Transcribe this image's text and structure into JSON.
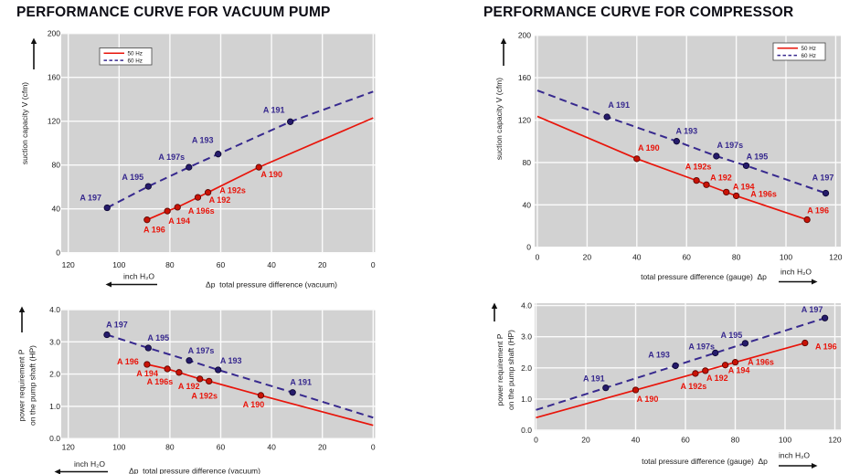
{
  "figure_titles": {
    "left": "PERFORMANCE CURVE FOR VACUUM PUMP",
    "right": "PERFORMANCE CURVE FOR COMPRESSOR"
  },
  "colors": {
    "plot_background": "#d2d2d2",
    "grid": "#fbfbfb",
    "axis_text": "#1a1a1a",
    "arrow": "#111111",
    "series_50hz": "#e8140a",
    "series_60hz": "#37298e"
  },
  "chart_data": [
    {
      "id": "vacuum-pump-suction-capacity",
      "type": "line",
      "group_title": "PERFORMANCE CURVE FOR VACUUM PUMP",
      "xlabel": "Δp  total pressure difference (vacuum)",
      "x_unit": "inch H₂O",
      "x_arrow_direction": "left",
      "x_reversed": true,
      "ylabel_lines": [
        "suction capacity V (cfm)"
      ],
      "xlim": [
        0,
        120
      ],
      "ylim": [
        0,
        200
      ],
      "xticks": [
        "0",
        "20",
        "40",
        "60",
        "80",
        "100",
        "120"
      ],
      "yticks": [
        "0",
        "40",
        "80",
        "120",
        "160",
        "200"
      ],
      "grid": true,
      "legend": {
        "position": "top-left"
      },
      "series": [
        {
          "name": "50 Hz",
          "style": "solid",
          "color": "#e8140a",
          "marker_fill": "#c91205",
          "marker_stroke": "#5e0500",
          "path": [
            [
              89,
              30
            ],
            [
              81,
              38
            ],
            [
              77,
              41.5
            ],
            [
              69,
              50.5
            ],
            [
              65,
              55
            ],
            [
              45,
              78
            ],
            [
              0,
              123
            ]
          ],
          "labeled_points": [
            {
              "label": "A 196",
              "x": 89,
              "y": 30,
              "dx": 8,
              "dy": 11
            },
            {
              "label": "A 194",
              "x": 81,
              "y": 38,
              "dx": 13,
              "dy": 11
            },
            {
              "label": "A 196s",
              "x": 77,
              "y": 41.5,
              "dx": 26,
              "dy": 4
            },
            {
              "label": "A 192",
              "x": 69,
              "y": 50.5,
              "dx": 24,
              "dy": 3
            },
            {
              "label": "A 192s",
              "x": 65,
              "y": 55,
              "dx": 27,
              "dy": -2
            },
            {
              "label": "A 190",
              "x": 45,
              "y": 78,
              "dx": 14,
              "dy": 8
            }
          ]
        },
        {
          "name": "60 Hz",
          "style": "dashed",
          "color": "#37298e",
          "marker_fill": "#251b6b",
          "marker_stroke": "#0d0733",
          "path": [
            [
              104.7,
              41
            ],
            [
              88.5,
              60.5
            ],
            [
              72.5,
              78
            ],
            [
              61,
              90
            ],
            [
              32.6,
              119.5
            ],
            [
              0,
              147
            ]
          ],
          "labeled_points": [
            {
              "label": "A 197",
              "x": 104.7,
              "y": 41,
              "dx": -18,
              "dy": -11
            },
            {
              "label": "A 195",
              "x": 88.5,
              "y": 60.5,
              "dx": -17,
              "dy": -10
            },
            {
              "label": "A 197s",
              "x": 72.5,
              "y": 78,
              "dx": -19,
              "dy": -11
            },
            {
              "label": "A 193",
              "x": 61,
              "y": 90,
              "dx": -17,
              "dy": -15
            },
            {
              "label": "A 191",
              "x": 32.6,
              "y": 119.5,
              "dx": -18,
              "dy": -13
            }
          ]
        }
      ]
    },
    {
      "id": "vacuum-pump-power",
      "type": "line",
      "group_title": "PERFORMANCE CURVE FOR VACUUM PUMP",
      "xlabel": "Δp  total pressure difference (vacuum)",
      "x_unit": "inch H₂O",
      "x_arrow_direction": "left",
      "x_reversed": true,
      "ylabel_lines": [
        "power requirement P",
        "on the pump shaft (HP)"
      ],
      "xlim": [
        0,
        120
      ],
      "ylim": [
        0,
        4
      ],
      "xticks": [
        "0",
        "20",
        "40",
        "60",
        "80",
        "100",
        "120"
      ],
      "yticks": [
        "0.0",
        "1.0",
        "2.0",
        "3.0",
        "4.0"
      ],
      "grid": true,
      "legend": null,
      "series": [
        {
          "name": "50 Hz",
          "style": "solid",
          "color": "#e8140a",
          "marker_fill": "#c91205",
          "marker_stroke": "#5e0500",
          "path": [
            [
              89,
              2.3
            ],
            [
              81,
              2.16
            ],
            [
              76.4,
              2.05
            ],
            [
              68.2,
              1.85
            ],
            [
              64.6,
              1.78
            ],
            [
              44.2,
              1.34
            ],
            [
              0,
              0.41
            ]
          ],
          "labeled_points": [
            {
              "label": "A 196",
              "x": 89,
              "y": 2.3,
              "dx": -21,
              "dy": -3
            },
            {
              "label": "A 194",
              "x": 81,
              "y": 2.16,
              "dx": -22,
              "dy": 5
            },
            {
              "label": "A 196s",
              "x": 76.4,
              "y": 2.05,
              "dx": -21,
              "dy": 10
            },
            {
              "label": "A 192",
              "x": 68.2,
              "y": 1.85,
              "dx": -12,
              "dy": 8
            },
            {
              "label": "A 192s",
              "x": 64.6,
              "y": 1.78,
              "dx": -5,
              "dy": 16
            },
            {
              "label": "A 190",
              "x": 44.2,
              "y": 1.34,
              "dx": -8,
              "dy": 10
            }
          ]
        },
        {
          "name": "60 Hz",
          "style": "dashed",
          "color": "#37298e",
          "marker_fill": "#251b6b",
          "marker_stroke": "#0d0733",
          "path": [
            [
              104.8,
              3.22
            ],
            [
              88.5,
              2.81
            ],
            [
              72.4,
              2.42
            ],
            [
              61,
              2.13
            ],
            [
              31.7,
              1.43
            ],
            [
              0,
              0.65
            ]
          ],
          "labeled_points": [
            {
              "label": "A 197",
              "x": 104.8,
              "y": 3.22,
              "dx": 11,
              "dy": -11
            },
            {
              "label": "A 195",
              "x": 88.5,
              "y": 2.81,
              "dx": 11,
              "dy": -11
            },
            {
              "label": "A 197s",
              "x": 72.4,
              "y": 2.42,
              "dx": 13,
              "dy": -11
            },
            {
              "label": "A 193",
              "x": 61,
              "y": 2.13,
              "dx": 14,
              "dy": -10
            },
            {
              "label": "A 191",
              "x": 31.7,
              "y": 1.43,
              "dx": 9,
              "dy": -11
            }
          ]
        }
      ]
    },
    {
      "id": "compressor-suction-capacity",
      "type": "line",
      "group_title": "PERFORMANCE CURVE FOR COMPRESSOR",
      "xlabel": "total pressure difference (gauge)  Δp",
      "x_unit": "inch H₂O",
      "x_arrow_direction": "right",
      "x_reversed": false,
      "ylabel_lines": [
        "suction capacity V (cfm)"
      ],
      "xlim": [
        0,
        120
      ],
      "ylim": [
        0,
        200
      ],
      "xticks": [
        "0",
        "20",
        "40",
        "60",
        "80",
        "100",
        "120"
      ],
      "yticks": [
        "0",
        "40",
        "80",
        "120",
        "160",
        "200"
      ],
      "grid": true,
      "legend": {
        "position": "top-right"
      },
      "series": [
        {
          "name": "50 Hz",
          "style": "solid",
          "color": "#e8140a",
          "marker_fill": "#c91205",
          "marker_stroke": "#5e0500",
          "path": [
            [
              0,
              123.5
            ],
            [
              40,
              83.5
            ],
            [
              64,
              63
            ],
            [
              68,
              59
            ],
            [
              76,
              52
            ],
            [
              80,
              48.5
            ],
            [
              108.5,
              26
            ]
          ],
          "labeled_points": [
            {
              "label": "A 190",
              "x": 40,
              "y": 83.5,
              "dx": 13,
              "dy": -12
            },
            {
              "label": "A 192s",
              "x": 64,
              "y": 63,
              "dx": 2,
              "dy": -15
            },
            {
              "label": "A 192",
              "x": 68,
              "y": 59,
              "dx": 16,
              "dy": -8
            },
            {
              "label": "A 194",
              "x": 76,
              "y": 52,
              "dx": 19,
              "dy": -6
            },
            {
              "label": "A 196s",
              "x": 80,
              "y": 48.5,
              "dx": 30,
              "dy": -2
            },
            {
              "label": "A 196",
              "x": 108.5,
              "y": 26,
              "dx": 12,
              "dy": -10
            }
          ]
        },
        {
          "name": "60 Hz",
          "style": "dashed",
          "color": "#37298e",
          "marker_fill": "#251b6b",
          "marker_stroke": "#0d0733",
          "path": [
            [
              0,
              148
            ],
            [
              28,
              123
            ],
            [
              56,
              100
            ],
            [
              72,
              86
            ],
            [
              84,
              77
            ],
            [
              116,
              51
            ]
          ],
          "labeled_points": [
            {
              "label": "A 191",
              "x": 28,
              "y": 123,
              "dx": 13,
              "dy": -13
            },
            {
              "label": "A 193",
              "x": 56,
              "y": 100,
              "dx": 11,
              "dy": -11
            },
            {
              "label": "A 197s",
              "x": 72,
              "y": 86,
              "dx": 15,
              "dy": -12
            },
            {
              "label": "A 195",
              "x": 84,
              "y": 77,
              "dx": 12,
              "dy": -10
            },
            {
              "label": "A 197",
              "x": 116,
              "y": 51,
              "dx": -3,
              "dy": -17
            }
          ]
        }
      ]
    },
    {
      "id": "compressor-power",
      "type": "line",
      "group_title": "PERFORMANCE CURVE FOR COMPRESSOR",
      "xlabel": "total pressure difference (gauge)  Δp",
      "x_unit": "inch H₂O",
      "x_arrow_direction": "right",
      "x_reversed": false,
      "ylabel_lines": [
        "power requirement P",
        "on the pump shaft (HP)"
      ],
      "xlim": [
        0,
        120
      ],
      "ylim": [
        0,
        4
      ],
      "xticks": [
        "0",
        "20",
        "40",
        "60",
        "80",
        "100",
        "120"
      ],
      "yticks": [
        "0.0",
        "1.0",
        "2.0",
        "3.0",
        "4.0"
      ],
      "grid": true,
      "legend": null,
      "series": [
        {
          "name": "50 Hz",
          "style": "solid",
          "color": "#e8140a",
          "marker_fill": "#c91205",
          "marker_stroke": "#5e0500",
          "path": [
            [
              0,
              0.4
            ],
            [
              40,
              1.29
            ],
            [
              64,
              1.82
            ],
            [
              68,
              1.91
            ],
            [
              76,
              2.09
            ],
            [
              80,
              2.18
            ],
            [
              108,
              2.8
            ]
          ],
          "labeled_points": [
            {
              "label": "A 190",
              "x": 40,
              "y": 1.29,
              "dx": 13,
              "dy": 10
            },
            {
              "label": "A 192s",
              "x": 64,
              "y": 1.82,
              "dx": -2,
              "dy": 14
            },
            {
              "label": "A 192",
              "x": 68,
              "y": 1.91,
              "dx": 13,
              "dy": 8
            },
            {
              "label": "A 194",
              "x": 76,
              "y": 2.09,
              "dx": 15,
              "dy": 6
            },
            {
              "label": "A 196s",
              "x": 80,
              "y": 2.18,
              "dx": 28,
              "dy": 0
            },
            {
              "label": "A 196",
              "x": 108,
              "y": 2.8,
              "dx": 23,
              "dy": 4
            }
          ]
        },
        {
          "name": "60 Hz",
          "style": "dashed",
          "color": "#37298e",
          "marker_fill": "#251b6b",
          "marker_stroke": "#0d0733",
          "path": [
            [
              0,
              0.65
            ],
            [
              28,
              1.36
            ],
            [
              56,
              2.07
            ],
            [
              72,
              2.48
            ],
            [
              84,
              2.79
            ],
            [
              116,
              3.6
            ]
          ],
          "labeled_points": [
            {
              "label": "A 191",
              "x": 28,
              "y": 1.36,
              "dx": -13,
              "dy": -10
            },
            {
              "label": "A 193",
              "x": 56,
              "y": 2.07,
              "dx": -18,
              "dy": -12
            },
            {
              "label": "A 197s",
              "x": 72,
              "y": 2.48,
              "dx": -15,
              "dy": -7
            },
            {
              "label": "A 195",
              "x": 84,
              "y": 2.79,
              "dx": -15,
              "dy": -9
            },
            {
              "label": "A 197",
              "x": 116,
              "y": 3.6,
              "dx": -14,
              "dy": -9
            }
          ]
        }
      ]
    }
  ]
}
